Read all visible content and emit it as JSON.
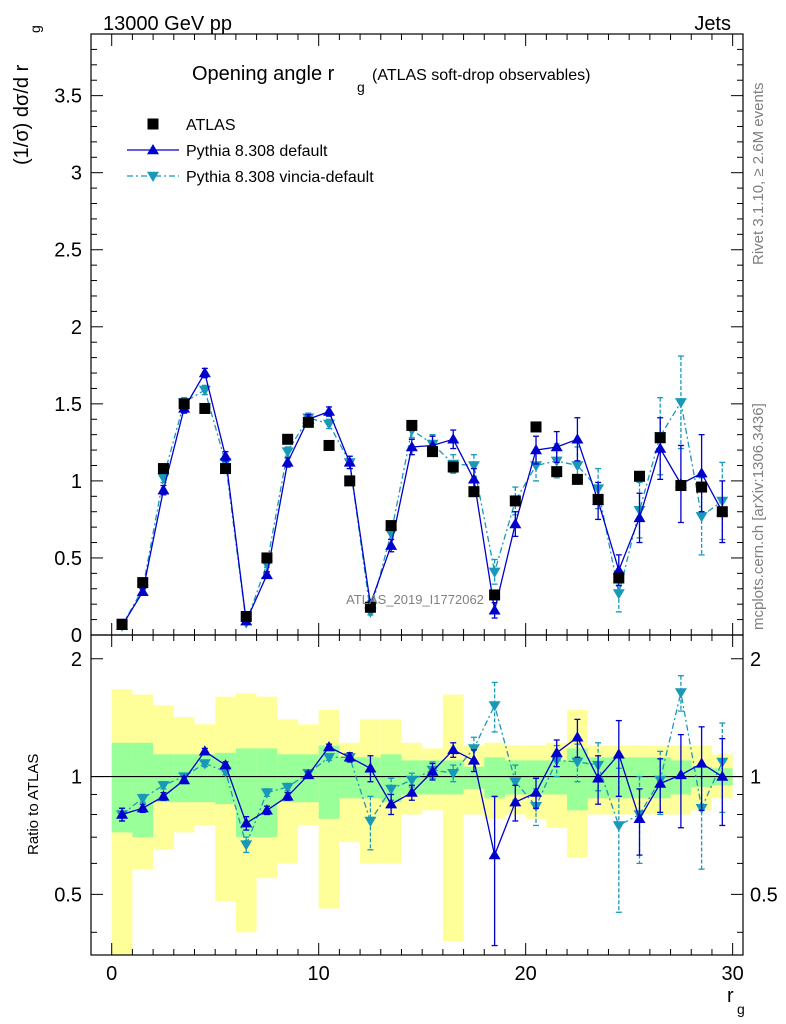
{
  "header": {
    "energy_label": "13000 GeV pp",
    "process_label": "Jets"
  },
  "side_labels": {
    "rivet": "Rivet 3.1.10, ≥ 2.6M events",
    "mcplots": "mcplots.cern.ch [arXiv:1306.3436]"
  },
  "chart_data": {
    "type": "scatter",
    "title": "Opening angle r",
    "title_sub": "g",
    "title_suffix": "(ATLAS soft-drop observables)",
    "watermark": "ATLAS_2019_I1772062",
    "ylabel_main": "(1/σ) dσ/d r",
    "ylabel_main_sub": "g",
    "ylabel_ratio": "Ratio to ATLAS",
    "xlabel": "r",
    "xlabel_sub": "g",
    "xlim": [
      -1,
      30.5
    ],
    "ylim_main": [
      0,
      3.9
    ],
    "ylim_ratio": [
      0.35,
      2.3
    ],
    "grid": false,
    "legend_position": "top-left",
    "main_ticks": [
      "0",
      "0.5",
      "1",
      "1.5",
      "2",
      "2.5",
      "3",
      "3.5"
    ],
    "ratio_ticks": [
      "0.5",
      "1",
      "2"
    ],
    "x_ticks": [
      "0",
      "10",
      "20",
      "30"
    ],
    "x": [
      0.5,
      1.5,
      2.5,
      3.5,
      4.5,
      5.5,
      6.5,
      7.5,
      8.5,
      9.5,
      10.5,
      11.5,
      12.5,
      13.5,
      14.5,
      15.5,
      16.5,
      17.5,
      18.5,
      19.5,
      20.5,
      21.5,
      22.5,
      23.5,
      24.5,
      25.5,
      26.5,
      27.5,
      28.5,
      29.5
    ],
    "series": [
      {
        "name": "ATLAS",
        "color": "#000000",
        "values": [
          0.07,
          0.34,
          1.08,
          1.5,
          1.47,
          1.08,
          0.12,
          0.5,
          1.27,
          1.38,
          1.23,
          1.0,
          0.18,
          0.71,
          1.36,
          1.19,
          1.09,
          0.93,
          0.26,
          0.87,
          1.35,
          1.06,
          1.01,
          0.88,
          0.37,
          1.03,
          1.28,
          0.97,
          0.96,
          0.8
        ]
      },
      {
        "name": "Pythia 8.308 default",
        "color": "#0000cc",
        "values": [
          0.06,
          0.28,
          0.94,
          1.47,
          1.7,
          1.16,
          0.09,
          0.39,
          1.12,
          1.4,
          1.45,
          1.12,
          0.2,
          0.58,
          1.22,
          1.23,
          1.27,
          1.01,
          0.16,
          0.72,
          1.2,
          1.22,
          1.27,
          0.87,
          0.42,
          0.76,
          1.21,
          0.98,
          1.05,
          0.8
        ],
        "errors": [
          0.01,
          0.02,
          0.03,
          0.03,
          0.03,
          0.03,
          0.01,
          0.02,
          0.03,
          0.03,
          0.03,
          0.04,
          0.02,
          0.04,
          0.05,
          0.06,
          0.06,
          0.07,
          0.05,
          0.08,
          0.09,
          0.1,
          0.14,
          0.12,
          0.1,
          0.16,
          0.2,
          0.25,
          0.25,
          0.2
        ]
      },
      {
        "name": "Pythia 8.308 vincia-default",
        "color": "#1899b8",
        "values": [
          0.06,
          0.3,
          1.02,
          1.51,
          1.59,
          1.12,
          0.08,
          0.46,
          1.19,
          1.41,
          1.37,
          1.12,
          0.15,
          0.66,
          1.33,
          1.24,
          1.11,
          1.1,
          0.41,
          0.87,
          1.1,
          1.13,
          1.1,
          0.95,
          0.27,
          0.81,
          1.29,
          1.51,
          0.77,
          0.87
        ],
        "errors": [
          0.01,
          0.02,
          0.03,
          0.03,
          0.03,
          0.03,
          0.01,
          0.02,
          0.03,
          0.03,
          0.03,
          0.04,
          0.02,
          0.04,
          0.05,
          0.06,
          0.06,
          0.07,
          0.08,
          0.09,
          0.1,
          0.11,
          0.12,
          0.13,
          0.12,
          0.18,
          0.25,
          0.3,
          0.25,
          0.25
        ]
      }
    ],
    "ratio_series": [
      {
        "name": "Pythia 8.308 default",
        "values": [
          0.8,
          0.83,
          0.89,
          0.98,
          1.16,
          1.07,
          0.76,
          0.82,
          0.89,
          1.01,
          1.19,
          1.12,
          1.05,
          0.85,
          0.91,
          1.03,
          1.17,
          1.1,
          0.63,
          0.86,
          0.91,
          1.15,
          1.26,
          0.99,
          1.14,
          0.78,
          0.96,
          1.01,
          1.08,
          1.0
        ],
        "errors": [
          0.03,
          0.02,
          0.02,
          0.02,
          0.02,
          0.02,
          0.03,
          0.02,
          0.02,
          0.02,
          0.02,
          0.03,
          0.08,
          0.05,
          0.04,
          0.05,
          0.05,
          0.07,
          0.26,
          0.09,
          0.08,
          0.09,
          0.14,
          0.14,
          0.25,
          0.15,
          0.15,
          0.27,
          0.26,
          0.25
        ]
      },
      {
        "name": "Pythia 8.308 vincia-default",
        "values": [
          0.8,
          0.88,
          0.95,
          1.0,
          1.08,
          1.03,
          0.67,
          0.91,
          0.94,
          1.02,
          1.12,
          1.12,
          0.77,
          0.93,
          0.98,
          1.04,
          1.02,
          1.18,
          1.52,
          0.97,
          0.84,
          1.1,
          1.09,
          1.07,
          0.75,
          0.8,
          0.98,
          1.64,
          0.83,
          1.09
        ],
        "errors": [
          0.03,
          0.02,
          0.02,
          0.02,
          0.02,
          0.02,
          0.03,
          0.02,
          0.02,
          0.02,
          0.02,
          0.03,
          0.12,
          0.06,
          0.04,
          0.05,
          0.05,
          0.08,
          0.22,
          0.1,
          0.09,
          0.1,
          0.12,
          0.15,
          0.3,
          0.2,
          0.18,
          0.17,
          0.25,
          0.28
        ]
      }
    ],
    "band_stat": [
      [
        0.72,
        1.22
      ],
      [
        0.7,
        1.22
      ],
      [
        0.86,
        1.14
      ],
      [
        0.86,
        1.14
      ],
      [
        0.86,
        1.14
      ],
      [
        0.85,
        1.15
      ],
      [
        0.7,
        1.18
      ],
      [
        0.7,
        1.18
      ],
      [
        0.86,
        1.14
      ],
      [
        0.86,
        1.14
      ],
      [
        0.78,
        1.2
      ],
      [
        0.88,
        1.12
      ],
      [
        0.88,
        1.12
      ],
      [
        0.86,
        1.14
      ],
      [
        0.9,
        1.1
      ],
      [
        0.9,
        1.1
      ],
      [
        0.9,
        1.1
      ],
      [
        0.93,
        1.06
      ],
      [
        0.88,
        1.12
      ],
      [
        0.9,
        1.1
      ],
      [
        0.9,
        1.1
      ],
      [
        0.9,
        1.1
      ],
      [
        0.82,
        1.18
      ],
      [
        0.88,
        1.12
      ],
      [
        0.88,
        1.12
      ],
      [
        0.88,
        1.12
      ],
      [
        0.88,
        1.12
      ],
      [
        0.9,
        1.1
      ],
      [
        0.94,
        1.06
      ],
      [
        0.95,
        1.05
      ]
    ],
    "band_total": [
      [
        0.35,
        1.67
      ],
      [
        0.58,
        1.62
      ],
      [
        0.65,
        1.52
      ],
      [
        0.72,
        1.42
      ],
      [
        0.75,
        1.36
      ],
      [
        0.48,
        1.6
      ],
      [
        0.4,
        1.63
      ],
      [
        0.55,
        1.6
      ],
      [
        0.6,
        1.4
      ],
      [
        0.75,
        1.36
      ],
      [
        0.46,
        1.48
      ],
      [
        0.68,
        1.22
      ],
      [
        0.6,
        1.4
      ],
      [
        0.6,
        1.4
      ],
      [
        0.8,
        1.22
      ],
      [
        0.82,
        1.18
      ],
      [
        0.38,
        1.62
      ],
      [
        0.8,
        1.2
      ],
      [
        0.78,
        1.22
      ],
      [
        0.8,
        1.2
      ],
      [
        0.78,
        1.2
      ],
      [
        0.74,
        1.22
      ],
      [
        0.62,
        1.48
      ],
      [
        0.8,
        1.2
      ],
      [
        0.8,
        1.2
      ],
      [
        0.8,
        1.2
      ],
      [
        0.8,
        1.2
      ],
      [
        0.8,
        1.2
      ],
      [
        0.82,
        1.2
      ],
      [
        0.88,
        1.14
      ]
    ],
    "band_colors": {
      "total": "#ffff99",
      "stat": "#99ff99"
    }
  }
}
